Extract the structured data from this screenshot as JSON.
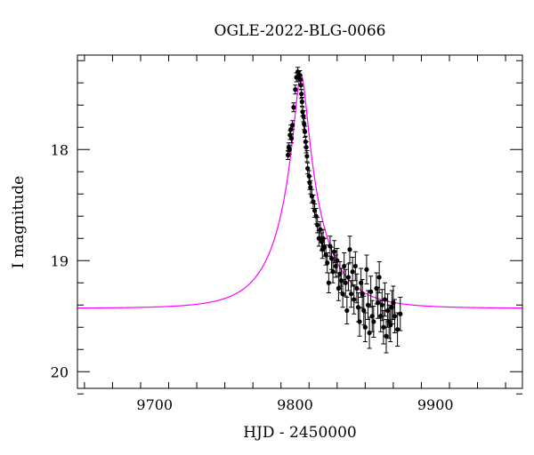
{
  "chart_data": {
    "type": "scatter",
    "title": "OGLE-2022-BLG-0066",
    "xlabel": "HJD - 2450000",
    "ylabel": "I magnitude",
    "xlim": [
      9645,
      9962
    ],
    "ylim": [
      20.15,
      17.15
    ],
    "y_inverted": true,
    "x_ticks": [
      9700,
      9800,
      9900
    ],
    "y_ticks": [
      18,
      19,
      20
    ],
    "grid": false,
    "colors": {
      "model": "#ff00ff",
      "data": "#000000",
      "frame": "#000000"
    },
    "model": {
      "name": "",
      "baseline_mag": 19.43,
      "peak_mag": 17.33,
      "t0": 9804.3,
      "tE": 32,
      "u0": 0.133
    },
    "series": [
      {
        "name": "",
        "x": [
          9795.0,
          9795.5,
          9796.0,
          9796.4,
          9797.0,
          9797.5,
          9798.2,
          9799.0,
          9800.2,
          9801.0,
          9802.0,
          9802.8,
          9803.4,
          9803.8,
          9804.2,
          9804.6,
          9805.0,
          9805.4,
          9806.0,
          9806.5,
          9807.0,
          9807.5,
          9808.0,
          9808.5,
          9809.0,
          9810.0,
          9810.5,
          9811.0,
          9812.0,
          9813.0,
          9814.0,
          9815.0,
          9816.0,
          9817.0,
          9818.0,
          9819.0,
          9819.5,
          9820.0,
          9821.0,
          9822.0,
          9823.0,
          9824.0,
          9825.0,
          9826.0,
          9827.0,
          9828.0,
          9829.0,
          9830.0,
          9831.0,
          9832.0,
          9833.0,
          9834.0,
          9835.0,
          9836.0,
          9837.0,
          9838.0,
          9839.0,
          9840.0,
          9841.0,
          9842.0,
          9843.0,
          9844.0,
          9845.0,
          9846.0,
          9847.0,
          9848.0,
          9849.0,
          9850.0,
          9851.0,
          9852.0,
          9853.0,
          9854.0,
          9855.0,
          9856.0,
          9858.0,
          9859.0,
          9860.0,
          9861.0,
          9862.0,
          9863.0,
          9864.0,
          9865.0,
          9866.0,
          9867.0,
          9868.0,
          9869.0,
          9870.0,
          9871.0,
          9873.0,
          9875.0
        ],
        "y": [
          18.05,
          17.98,
          18.0,
          17.87,
          17.82,
          17.9,
          17.78,
          17.62,
          17.46,
          17.35,
          17.3,
          17.34,
          17.33,
          17.37,
          17.42,
          17.5,
          17.57,
          17.66,
          17.7,
          17.77,
          17.84,
          17.93,
          17.98,
          18.06,
          18.17,
          18.24,
          18.3,
          18.34,
          18.42,
          18.47,
          18.55,
          18.6,
          18.68,
          18.8,
          18.72,
          18.83,
          18.9,
          18.8,
          18.88,
          18.95,
          19.02,
          19.2,
          18.87,
          18.98,
          19.1,
          18.92,
          19.05,
          19.0,
          19.25,
          19.12,
          19.18,
          19.3,
          19.05,
          19.2,
          19.45,
          19.15,
          18.9,
          19.3,
          19.1,
          19.35,
          19.05,
          19.25,
          19.42,
          19.55,
          19.2,
          19.3,
          19.45,
          19.6,
          19.08,
          19.4,
          19.65,
          19.28,
          19.5,
          19.55,
          19.25,
          19.38,
          19.15,
          19.5,
          19.4,
          19.6,
          19.35,
          19.68,
          19.45,
          19.55,
          19.58,
          19.42,
          19.38,
          19.5,
          19.62,
          19.48
        ],
        "err": [
          0.04,
          0.04,
          0.04,
          0.04,
          0.04,
          0.04,
          0.04,
          0.04,
          0.04,
          0.04,
          0.04,
          0.04,
          0.04,
          0.04,
          0.04,
          0.04,
          0.04,
          0.04,
          0.05,
          0.05,
          0.05,
          0.05,
          0.05,
          0.05,
          0.05,
          0.05,
          0.06,
          0.06,
          0.06,
          0.06,
          0.06,
          0.07,
          0.07,
          0.07,
          0.07,
          0.08,
          0.08,
          0.08,
          0.08,
          0.09,
          0.09,
          0.09,
          0.09,
          0.1,
          0.1,
          0.1,
          0.1,
          0.11,
          0.11,
          0.11,
          0.11,
          0.12,
          0.12,
          0.12,
          0.12,
          0.12,
          0.12,
          0.12,
          0.13,
          0.13,
          0.13,
          0.13,
          0.13,
          0.13,
          0.13,
          0.13,
          0.13,
          0.13,
          0.13,
          0.13,
          0.14,
          0.14,
          0.14,
          0.14,
          0.14,
          0.14,
          0.14,
          0.14,
          0.14,
          0.15,
          0.15,
          0.15,
          0.15,
          0.15,
          0.15,
          0.15,
          0.15,
          0.15,
          0.15,
          0.15
        ]
      }
    ]
  }
}
